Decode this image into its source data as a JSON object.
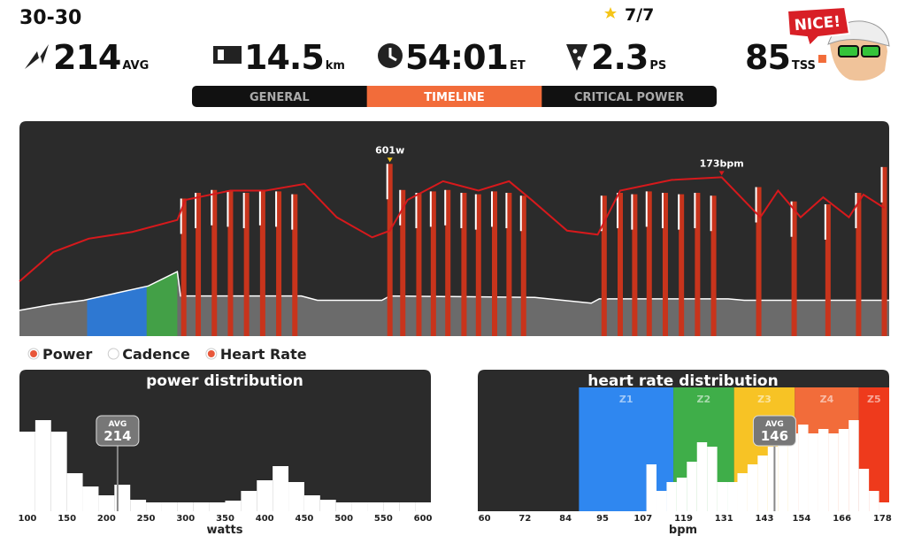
{
  "header": {
    "workout": "30-30",
    "stars": "7/7",
    "badge": "NICE!"
  },
  "stats": [
    {
      "value": 214,
      "unit": "AVG"
    },
    {
      "value": 14.5,
      "unit": "km"
    },
    {
      "value": "54:01",
      "unit": "ET"
    },
    {
      "value": 2.3,
      "unit": "PS"
    },
    {
      "value": 85,
      "unit": "TSS"
    }
  ],
  "tabs": {
    "items": [
      "GENERAL",
      "TIMELINE",
      "CRITICAL POWER"
    ],
    "active": 1
  },
  "timeline": {
    "xlim": [
      0,
      54
    ],
    "ylim": [
      0,
      750
    ],
    "y2lim": [
      54,
      215
    ],
    "power": {
      "x": [
        0,
        2,
        4,
        6,
        8,
        9.8,
        10,
        17.5,
        18.5,
        22.5,
        23,
        32,
        35.5,
        36,
        44,
        45,
        54
      ],
      "values": [
        90,
        110,
        125,
        150,
        175,
        225,
        140,
        140,
        125,
        125,
        140,
        135,
        115,
        130,
        130,
        125,
        125
      ],
      "color": "#6b6b6b"
    },
    "zones": [
      {
        "from": 4.2,
        "to": 7.9,
        "color": "#2e78d2"
      },
      {
        "from": 7.9,
        "to": 9.8,
        "color": "#43a047"
      }
    ],
    "efforts": {
      "x": [
        10.2,
        11.1,
        12.1,
        13.1,
        14.1,
        15.1,
        16.1,
        17.1,
        23.0,
        23.8,
        24.8,
        25.7,
        26.6,
        27.6,
        28.5,
        29.5,
        30.4,
        31.3,
        36.3,
        37.3,
        38.2,
        39.1,
        40.1,
        41.1,
        42.1,
        43.1,
        45.9,
        48.1,
        50.2,
        52.1,
        53.7
      ],
      "values": [
        480,
        500,
        510,
        505,
        500,
        510,
        505,
        495,
        601,
        510,
        500,
        505,
        510,
        500,
        495,
        505,
        500,
        490,
        490,
        500,
        495,
        505,
        500,
        495,
        500,
        490,
        520,
        470,
        460,
        500,
        590
      ],
      "color": "#c8341c"
    },
    "heart_rate": {
      "x": [
        0,
        2.1,
        4.3,
        7.0,
        9.8,
        10.3,
        13.1,
        15.3,
        17.7,
        19.7,
        21.9,
        23.0,
        24.1,
        26.3,
        28.5,
        30.4,
        31.8,
        34.0,
        35.9,
        37.3,
        40.5,
        43.6,
        46.0,
        47.1,
        48.5,
        49.9,
        51.5,
        52.4,
        53.7
      ],
      "values": [
        95,
        117,
        127,
        132,
        141,
        156,
        163,
        163,
        168,
        143,
        128,
        133,
        156,
        170,
        163,
        170,
        156,
        133,
        130,
        163,
        171,
        173,
        143,
        163,
        143,
        158,
        143,
        160,
        150
      ],
      "color": "#d7191c"
    },
    "annotations": [
      {
        "label": "601w",
        "x": 23.0,
        "value": 601,
        "axis": "y"
      },
      {
        "label": "173bpm",
        "x": 43.6,
        "value": 173,
        "axis": "y2"
      }
    ],
    "legend": [
      {
        "name": "Power",
        "color": "#e8573a"
      },
      {
        "name": "Cadence",
        "color": "#ffffff"
      },
      {
        "name": "Heart Rate",
        "color": "#e8573a"
      }
    ]
  },
  "power_distribution": {
    "title": "power distribution",
    "xlabel": "watts",
    "bins": [
      90,
      110,
      130,
      150,
      170,
      190,
      210,
      230,
      250,
      270,
      290,
      310,
      330,
      350,
      370,
      390,
      410,
      430,
      450,
      470,
      490,
      510,
      530,
      550,
      570,
      590,
      610
    ],
    "values": [
      90,
      103,
      90,
      43,
      28,
      18,
      30,
      13,
      10,
      10,
      10,
      10,
      10,
      12,
      23,
      35,
      51,
      33,
      18,
      13,
      10,
      10,
      10,
      10,
      10,
      10
    ],
    "xlim": [
      90,
      610
    ],
    "ylim": [
      0,
      140
    ],
    "xticks": [
      100,
      150,
      200,
      250,
      300,
      350,
      400,
      450,
      500,
      550,
      600
    ],
    "avg": {
      "label": "AVG",
      "value": 214
    }
  },
  "hr_distribution": {
    "title": "heart rate distribution",
    "xlabel": "bpm",
    "bins": [
      105,
      108,
      111,
      114,
      117,
      120,
      123,
      126,
      129,
      132,
      135,
      138,
      141,
      144,
      147,
      150,
      153,
      156,
      159,
      162,
      165,
      168,
      171,
      174,
      177,
      180
    ],
    "values": [
      0,
      53,
      23,
      33,
      38,
      56,
      78,
      73,
      33,
      33,
      43,
      53,
      63,
      73,
      78,
      88,
      98,
      88,
      93,
      88,
      93,
      103,
      48,
      23,
      10
    ],
    "xlim": [
      58,
      180
    ],
    "ylim": [
      0,
      140
    ],
    "xticks": [
      60,
      72,
      84,
      95,
      107,
      119,
      131,
      143,
      154,
      166,
      178
    ],
    "zones": [
      {
        "name": "Z1",
        "from": 88,
        "to": 116,
        "color": "#2f87f0"
      },
      {
        "name": "Z2",
        "from": 116,
        "to": 134,
        "color": "#3fae49"
      },
      {
        "name": "Z3",
        "from": 134,
        "to": 152,
        "color": "#f7c325"
      },
      {
        "name": "Z4",
        "from": 152,
        "to": 171,
        "color": "#f26c3a"
      },
      {
        "name": "Z5",
        "from": 171,
        "to": 180,
        "color": "#ee3a1c"
      }
    ],
    "avg": {
      "label": "AVG",
      "value": 146
    }
  }
}
